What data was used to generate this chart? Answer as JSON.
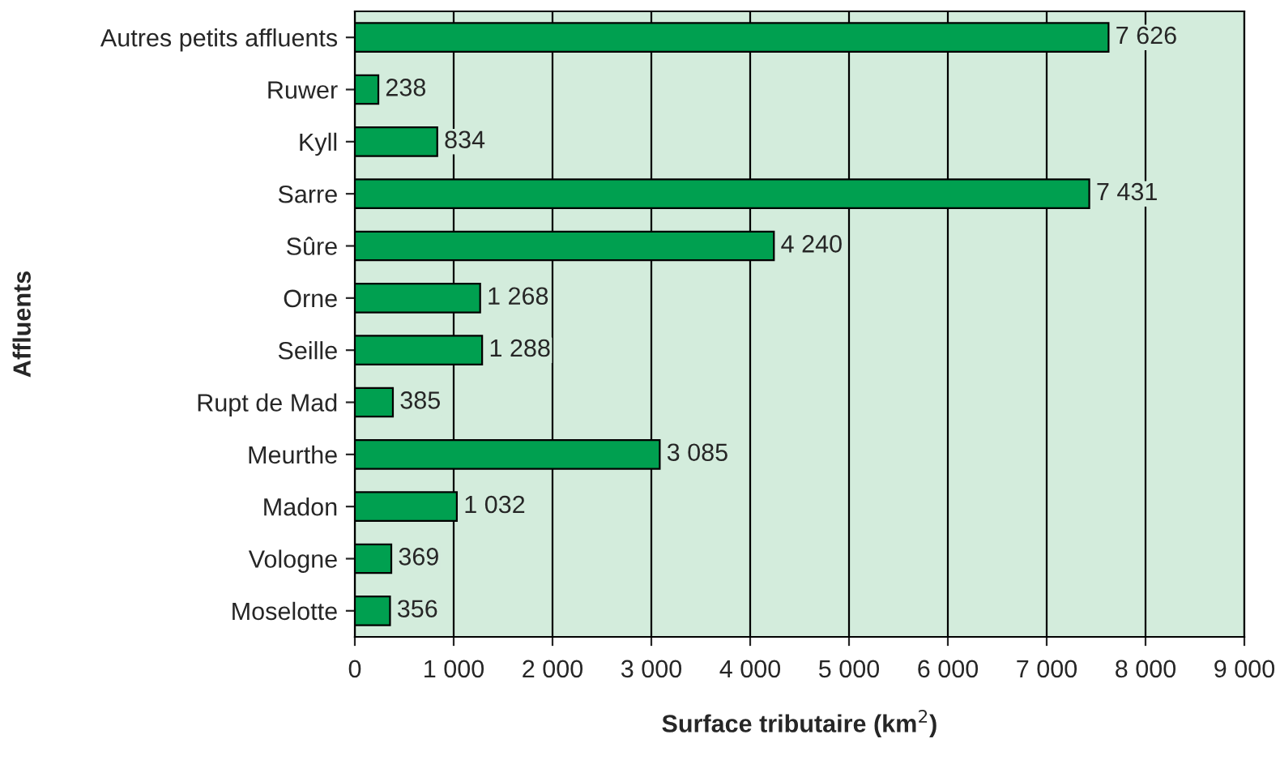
{
  "chart_data": {
    "type": "bar",
    "orientation": "horizontal",
    "xlabel": "Surface tributaire (km$^{2}$)",
    "ylabel": "Affluents",
    "categories": [
      "Autres petits affluents",
      "Ruwer",
      "Kyll",
      "Sarre",
      "Sûre",
      "Orne",
      "Seille",
      "Rupt de Mad",
      "Meurthe",
      "Madon",
      "Vologne",
      "Moselotte"
    ],
    "values": [
      7626,
      238,
      834,
      7431,
      4240,
      1268,
      1288,
      385,
      3085,
      1032,
      369,
      356
    ],
    "value_labels": [
      "7 626",
      "238",
      "834",
      "7 431",
      "4 240",
      "1 268",
      "1 288",
      "385",
      "3 085",
      "1 032",
      "369",
      "356"
    ],
    "color": "#00a050",
    "xlim": [
      0,
      9000
    ],
    "xticks": [
      0,
      {
        "value": 1000,
        "label": "1 000"
      },
      {
        "value": 2000,
        "label": "2 000"
      },
      {
        "value": 3000,
        "label": "3 000"
      },
      {
        "value": 4000,
        "label": "4 000"
      },
      {
        "value": 5000,
        "label": "5 000"
      },
      {
        "value": 6000,
        "label": "6 000"
      },
      {
        "value": 7000,
        "label": "7 000"
      },
      {
        "value": 8000,
        "label": "8 000"
      },
      {
        "value": 9000,
        "label": "9 000"
      }
    ],
    "grid": "x",
    "legend": false
  }
}
